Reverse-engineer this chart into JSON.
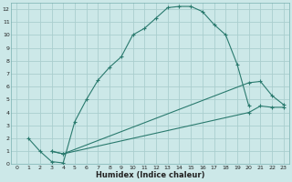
{
  "xlabel": "Humidex (Indice chaleur)",
  "ylabel": "",
  "bg_color": "#cce8e8",
  "grid_color": "#aacece",
  "line_color": "#2a7a6e",
  "xlim": [
    -0.5,
    23.5
  ],
  "ylim": [
    0,
    12.5
  ],
  "xticks": [
    0,
    1,
    2,
    3,
    4,
    5,
    6,
    7,
    8,
    9,
    10,
    11,
    12,
    13,
    14,
    15,
    16,
    17,
    18,
    19,
    20,
    21,
    22,
    23
  ],
  "yticks": [
    0,
    1,
    2,
    3,
    4,
    5,
    6,
    7,
    8,
    9,
    10,
    11,
    12
  ],
  "curve1_x": [
    1,
    2,
    3,
    4,
    5,
    6,
    7,
    8,
    9,
    10,
    11,
    12,
    13,
    14,
    15,
    16,
    17,
    18,
    19,
    20
  ],
  "curve1_y": [
    2,
    1,
    0.2,
    0.1,
    3.3,
    5,
    6.5,
    7.5,
    8.3,
    10,
    10.5,
    11.3,
    12.1,
    12.2,
    12.2,
    11.8,
    10.8,
    10,
    7.7,
    4.5
  ],
  "curve2_x": [
    3,
    4,
    20,
    21,
    22,
    23
  ],
  "curve2_y": [
    1,
    0.8,
    6.3,
    6.4,
    5.3,
    4.6
  ],
  "curve3_x": [
    3,
    4,
    20,
    21,
    22,
    23
  ],
  "curve3_y": [
    1,
    0.8,
    4.0,
    4.5,
    4.4,
    4.4
  ],
  "tick_fontsize": 4.5,
  "xlabel_fontsize": 6.0
}
